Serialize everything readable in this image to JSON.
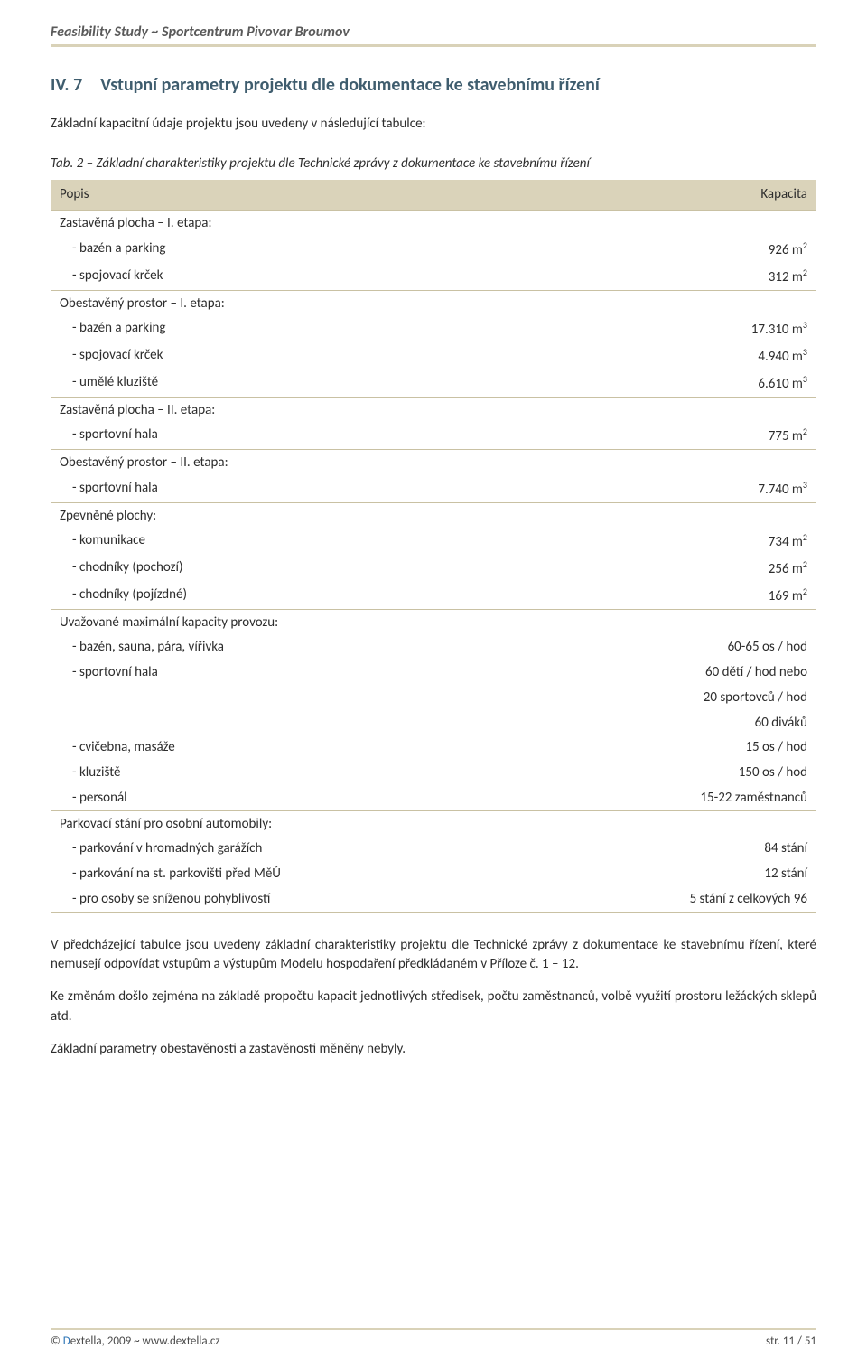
{
  "header": {
    "left": "Feasibility Study ~ Sportcentrum Pivovar Broumov",
    "right": ""
  },
  "section": {
    "number": "IV. 7",
    "title": "Vstupní parametry projektu dle dokumentace ke stavebnímu řízení"
  },
  "intro": "Základní kapacitní údaje projektu jsou uvedeny v následující tabulce:",
  "tableCaption": "Tab. 2 – Základní charakteristiky projektu dle Technické zprávy z dokumentace ke stavebnímu řízení",
  "table": {
    "col1": "Popis",
    "col2": "Kapacita",
    "groups": [
      {
        "label": "Zastavěná plocha – I. etapa:",
        "rows": [
          {
            "label": "- bazén a parking",
            "value": "926 m",
            "sup": "2"
          },
          {
            "label": "- spojovací krček",
            "value": "312 m",
            "sup": "2"
          }
        ]
      },
      {
        "label": "Obestavěný prostor – I. etapa:",
        "rows": [
          {
            "label": "- bazén a parking",
            "value": "17.310 m",
            "sup": "3"
          },
          {
            "label": "- spojovací krček",
            "value": "4.940 m",
            "sup": "3"
          },
          {
            "label": "- umělé kluziště",
            "value": "6.610 m",
            "sup": "3"
          }
        ]
      },
      {
        "label": "Zastavěná plocha – II. etapa:",
        "rows": [
          {
            "label": "- sportovní hala",
            "value": "775 m",
            "sup": "2"
          }
        ]
      },
      {
        "label": "Obestavěný prostor – II. etapa:",
        "rows": [
          {
            "label": "- sportovní hala",
            "value": "7.740 m",
            "sup": "3"
          }
        ]
      },
      {
        "label": "Zpevněné plochy:",
        "rows": [
          {
            "label": "- komunikace",
            "value": "734 m",
            "sup": "2"
          },
          {
            "label": "- chodníky (pochozí)",
            "value": "256 m",
            "sup": "2"
          },
          {
            "label": "- chodníky (pojízdné)",
            "value": "169 m",
            "sup": "2"
          }
        ]
      },
      {
        "label": "Uvažované maximální kapacity provozu:",
        "rows": [
          {
            "label": "- bazén, sauna, pára, vířivka",
            "value": "60-65 os / hod",
            "sup": ""
          },
          {
            "label": "- sportovní hala",
            "value": "60 dětí / hod nebo",
            "sup": ""
          },
          {
            "label": "",
            "value": "20 sportovců / hod",
            "sup": ""
          },
          {
            "label": "",
            "value": "60 diváků",
            "sup": ""
          },
          {
            "label": "- cvičebna, masáže",
            "value": "15 os / hod",
            "sup": ""
          },
          {
            "label": "- kluziště",
            "value": "150 os / hod",
            "sup": ""
          },
          {
            "label": "- personál",
            "value": "15-22 zaměstnanců",
            "sup": ""
          }
        ]
      },
      {
        "label": "Parkovací stání pro osobní automobily:",
        "rows": [
          {
            "label": "- parkování v hromadných garážích",
            "value": "84 stání",
            "sup": ""
          },
          {
            "label": "- parkování na st. parkovišti před MěÚ",
            "value": "12 stání",
            "sup": ""
          },
          {
            "label": "- pro osoby se sníženou pohyblivostí",
            "value": "5 stání z celkových 96",
            "sup": ""
          }
        ]
      }
    ]
  },
  "paragraphs": [
    "V předcházející tabulce jsou uvedeny základní charakteristiky projektu dle Technické zprávy z dokumentace ke stavebnímu řízení, které nemusejí odpovídat vstupům a výstupům Modelu hospodaření předkládaném v Příloze č. 1 – 12.",
    "Ke změnám došlo zejména na základě propočtu kapacit jednotlivých středisek, počtu zaměstnanců, volbě využití prostoru ležáckých sklepů atd.",
    "Základní parametry obestavěnosti a zastavěnosti měněny nebyly."
  ],
  "footer": {
    "copyright_prefix": "© ",
    "brand_d": "D",
    "brand_rest": "extella",
    "copyright_suffix": ", 2009 ~ www.dextella.cz",
    "page": "str. 11 / 51"
  }
}
